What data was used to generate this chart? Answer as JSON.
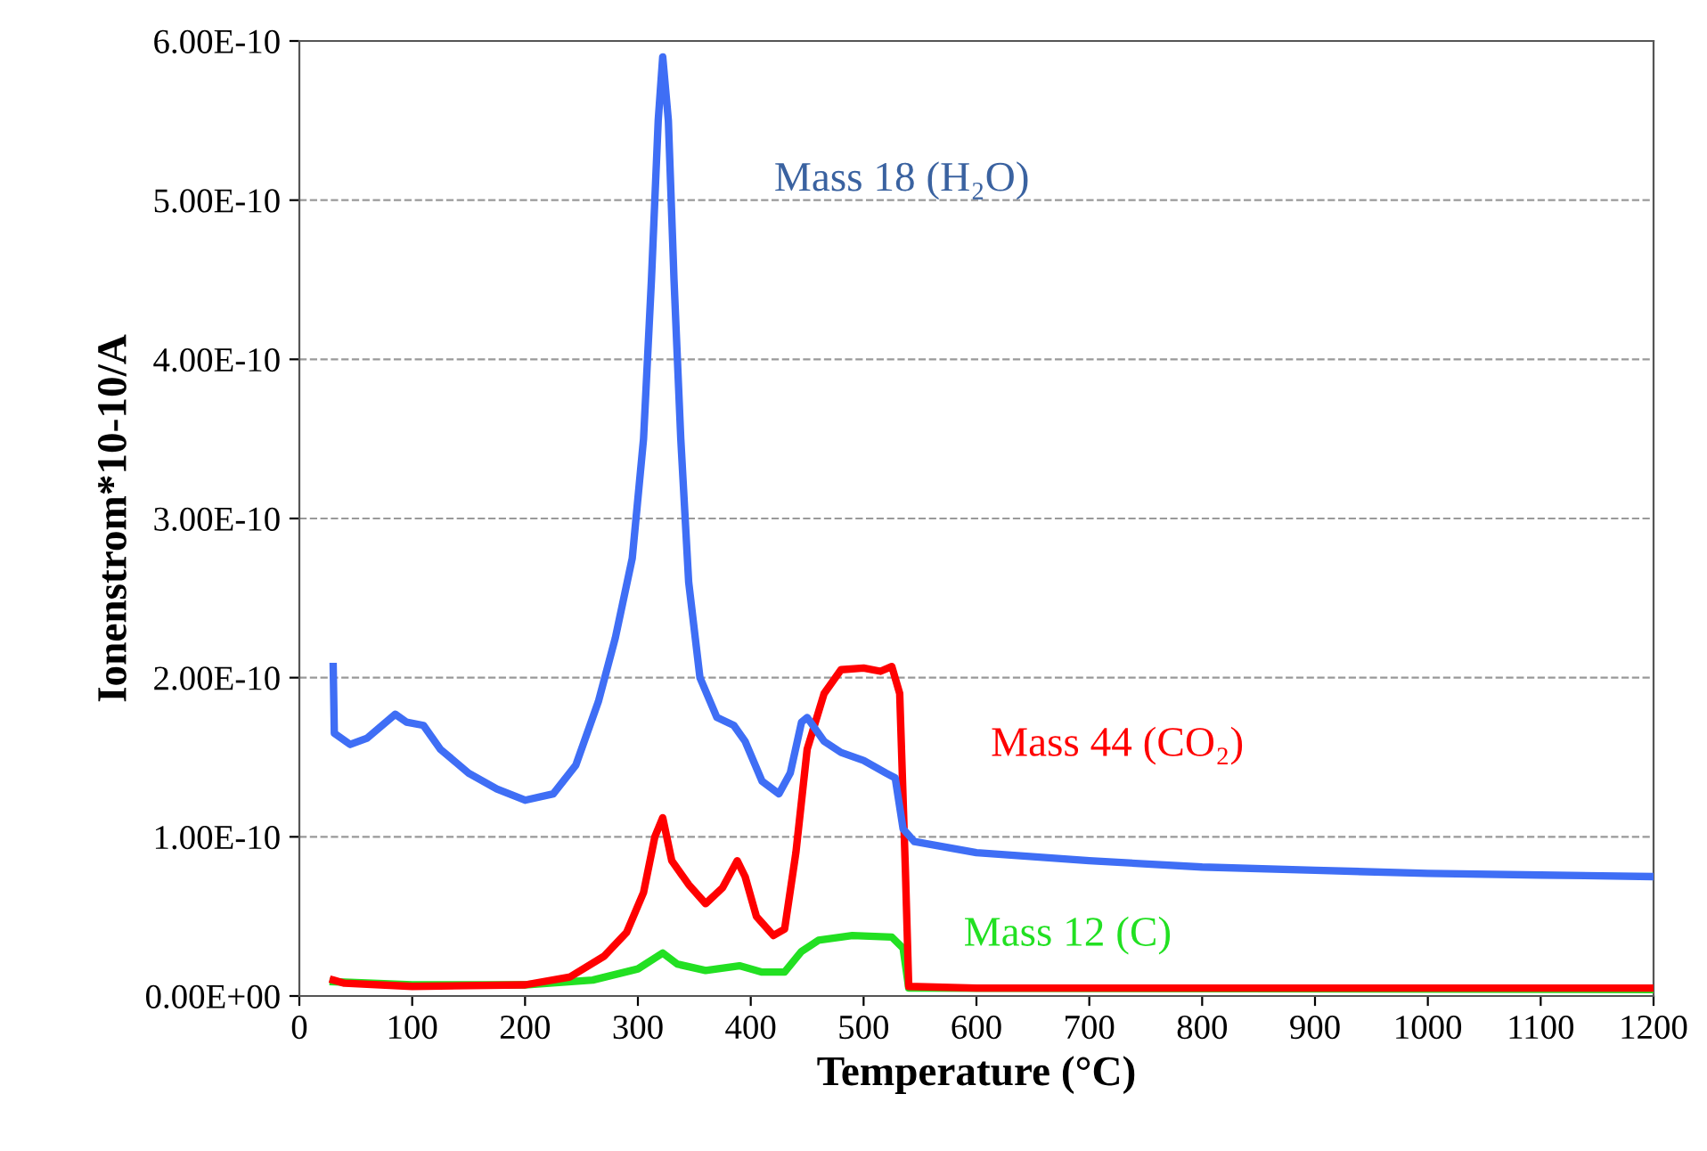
{
  "chart_data": {
    "type": "line",
    "xlabel": "Temperature (°C)",
    "ylabel": "Ionenstrom*10-10/A",
    "xlim": [
      0,
      1200
    ],
    "xticks": [
      0,
      100,
      200,
      300,
      400,
      500,
      600,
      700,
      800,
      900,
      1000,
      1100,
      1200
    ],
    "ylim": [
      0,
      6e-10
    ],
    "yticks": [
      {
        "value": 0,
        "label": "0.00E+00"
      },
      {
        "value": 1e-10,
        "label": "1.00E-10"
      },
      {
        "value": 2e-10,
        "label": "2.00E-10"
      },
      {
        "value": 3e-10,
        "label": "3.00E-10"
      },
      {
        "value": 4e-10,
        "label": "4.00E-10"
      },
      {
        "value": 5e-10,
        "label": "5.00E-10"
      },
      {
        "value": 6e-10,
        "label": "6.00E-10"
      }
    ],
    "grid": "y",
    "legend": false,
    "marker": "none",
    "line_style": "solid",
    "series": [
      {
        "name": "Mass 18 (H₂O)",
        "color": "#3f6ef5",
        "x": [
          30,
          31,
          45,
          60,
          85,
          95,
          110,
          125,
          150,
          175,
          200,
          225,
          245,
          265,
          280,
          295,
          305,
          312,
          318,
          322,
          327,
          332,
          338,
          345,
          355,
          370,
          385,
          395,
          410,
          425,
          435,
          445,
          450,
          465,
          480,
          500,
          520,
          528,
          535,
          545,
          600,
          700,
          800,
          900,
          1000,
          1100,
          1200
        ],
        "values": [
          2.07e-10,
          1.65e-10,
          1.58e-10,
          1.62e-10,
          1.77e-10,
          1.72e-10,
          1.7e-10,
          1.55e-10,
          1.4e-10,
          1.3e-10,
          1.23e-10,
          1.27e-10,
          1.45e-10,
          1.85e-10,
          2.25e-10,
          2.75e-10,
          3.5e-10,
          4.5e-10,
          5.5e-10,
          5.9e-10,
          5.5e-10,
          4.5e-10,
          3.5e-10,
          2.6e-10,
          2e-10,
          1.75e-10,
          1.7e-10,
          1.6e-10,
          1.35e-10,
          1.27e-10,
          1.4e-10,
          1.72e-10,
          1.75e-10,
          1.6e-10,
          1.53e-10,
          1.48e-10,
          1.4e-10,
          1.37e-10,
          1.05e-10,
          9.7e-11,
          9e-11,
          8.5e-11,
          8.1e-11,
          7.9e-11,
          7.7e-11,
          7.6e-11,
          7.5e-11
        ]
      },
      {
        "name": "Mass 44 (CO₂)",
        "color": "#ff0000",
        "x": [
          30,
          40,
          100,
          200,
          240,
          270,
          290,
          305,
          315,
          322,
          330,
          345,
          360,
          375,
          388,
          395,
          405,
          420,
          430,
          440,
          450,
          465,
          480,
          500,
          515,
          525,
          532,
          537,
          540,
          600,
          1200
        ],
        "values": [
          1e-11,
          8e-12,
          6e-12,
          7e-12,
          1.2e-11,
          2.5e-11,
          4e-11,
          6.5e-11,
          1e-10,
          1.12e-10,
          8.5e-11,
          7e-11,
          5.8e-11,
          6.8e-11,
          8.5e-11,
          7.5e-11,
          5e-11,
          3.8e-11,
          4.2e-11,
          9e-11,
          1.55e-10,
          1.9e-10,
          2.05e-10,
          2.06e-10,
          2.04e-10,
          2.07e-10,
          1.9e-10,
          8e-11,
          6e-12,
          5e-12,
          5e-12
        ]
      },
      {
        "name": "Mass 12 (C)",
        "color": "#22e022",
        "x": [
          30,
          100,
          200,
          260,
          300,
          322,
          335,
          360,
          390,
          410,
          430,
          445,
          460,
          490,
          525,
          535,
          540,
          1200
        ],
        "values": [
          9e-12,
          7e-12,
          7e-12,
          1e-11,
          1.7e-11,
          2.7e-11,
          2e-11,
          1.6e-11,
          1.9e-11,
          1.5e-11,
          1.5e-11,
          2.8e-11,
          3.5e-11,
          3.8e-11,
          3.7e-11,
          3e-11,
          5e-12,
          4e-12
        ]
      }
    ]
  }
}
